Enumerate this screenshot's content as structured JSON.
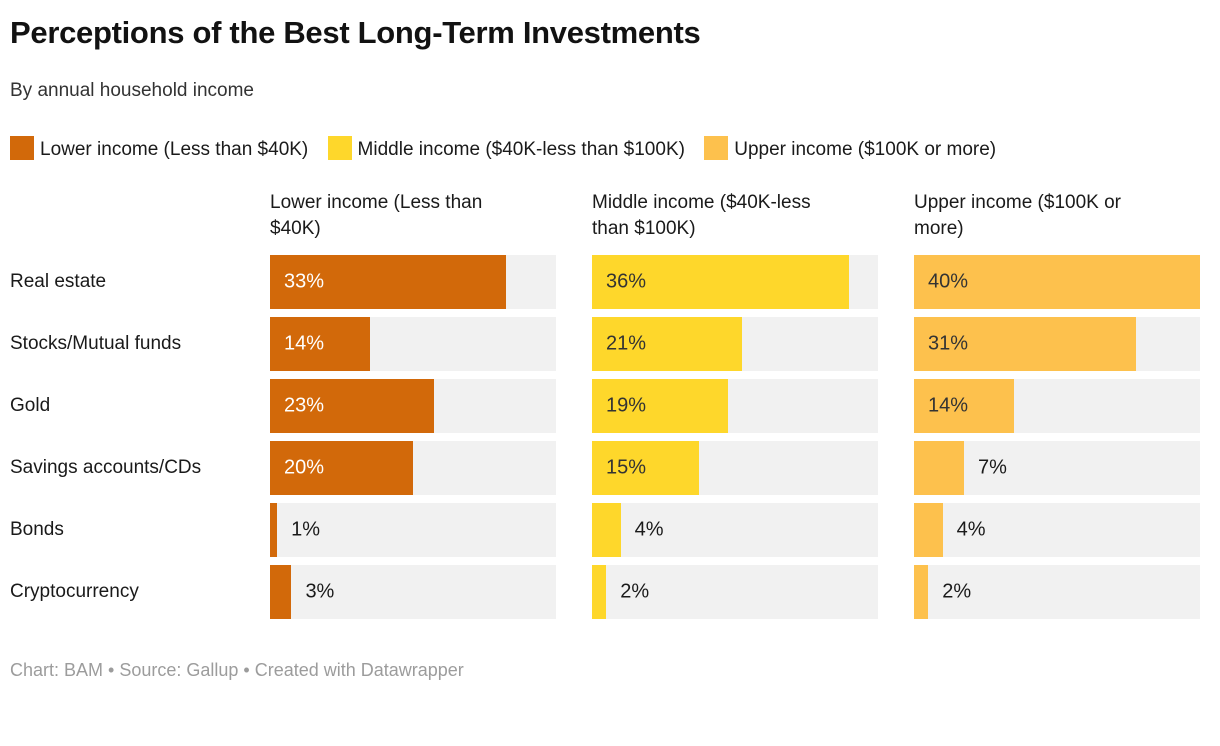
{
  "header": {
    "title": "Perceptions of the Best Long-Term Investments",
    "subtitle": "By annual household income"
  },
  "legend": {
    "items": [
      {
        "label": "Lower income (Less than $40K)",
        "color": "#D2690A"
      },
      {
        "label": "Middle income ($40K-less than $100K)",
        "color": "#FED72B"
      },
      {
        "label": "Upper income ($100K or more)",
        "color": "#FDC14D"
      }
    ]
  },
  "chart_data": {
    "type": "bar",
    "orientation": "horizontal",
    "layout": "small-multiples-grouped-by-series",
    "title": "Perceptions of the Best Long-Term Investments",
    "subtitle": "By annual household income",
    "categories": [
      "Real estate",
      "Stocks/Mutual funds",
      "Gold",
      "Savings accounts/CDs",
      "Bonds",
      "Cryptocurrency"
    ],
    "series": [
      {
        "name": "Lower income (Less than $40K)",
        "color": "#D2690A",
        "label_color_inside": "#ffffff",
        "values": [
          33,
          14,
          23,
          20,
          1,
          3
        ]
      },
      {
        "name": "Middle income ($40K-less than $100K)",
        "color": "#FED72B",
        "label_color_inside": "#333333",
        "values": [
          36,
          21,
          19,
          15,
          4,
          2
        ]
      },
      {
        "name": "Upper income ($100K or more)",
        "color": "#FDC14D",
        "label_color_inside": "#333333",
        "values": [
          40,
          31,
          14,
          7,
          4,
          2
        ]
      }
    ],
    "value_suffix": "%",
    "xlim": [
      0,
      40
    ],
    "inside_label_threshold": 10,
    "track_color": "#F1F1F1",
    "grid": "off",
    "legend_position": "top"
  },
  "footer": {
    "text": "Chart: BAM • Source: Gallup • Created with Datawrapper"
  }
}
